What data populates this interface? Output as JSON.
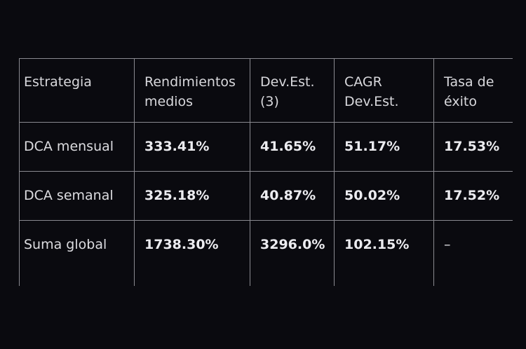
{
  "table": {
    "headers": [
      "Estrategia",
      "Rendimientos medios",
      "Dev.Est. (3)",
      "CAGR Dev.Est.",
      "Tasa de éxito"
    ],
    "rows": [
      [
        "DCA mensual",
        "333.41%",
        "41.65%",
        "51.17%",
        "17.53%"
      ],
      [
        "DCA semanal",
        "325.18%",
        "40.87%",
        "50.02%",
        "17.52%"
      ],
      [
        "Suma global",
        "1738.30%",
        "3296.0%",
        "102.15%",
        "–"
      ]
    ]
  },
  "colors": {
    "background": "#0a0a0f",
    "text": "#e4e4e8",
    "border": "#8a8a90"
  }
}
